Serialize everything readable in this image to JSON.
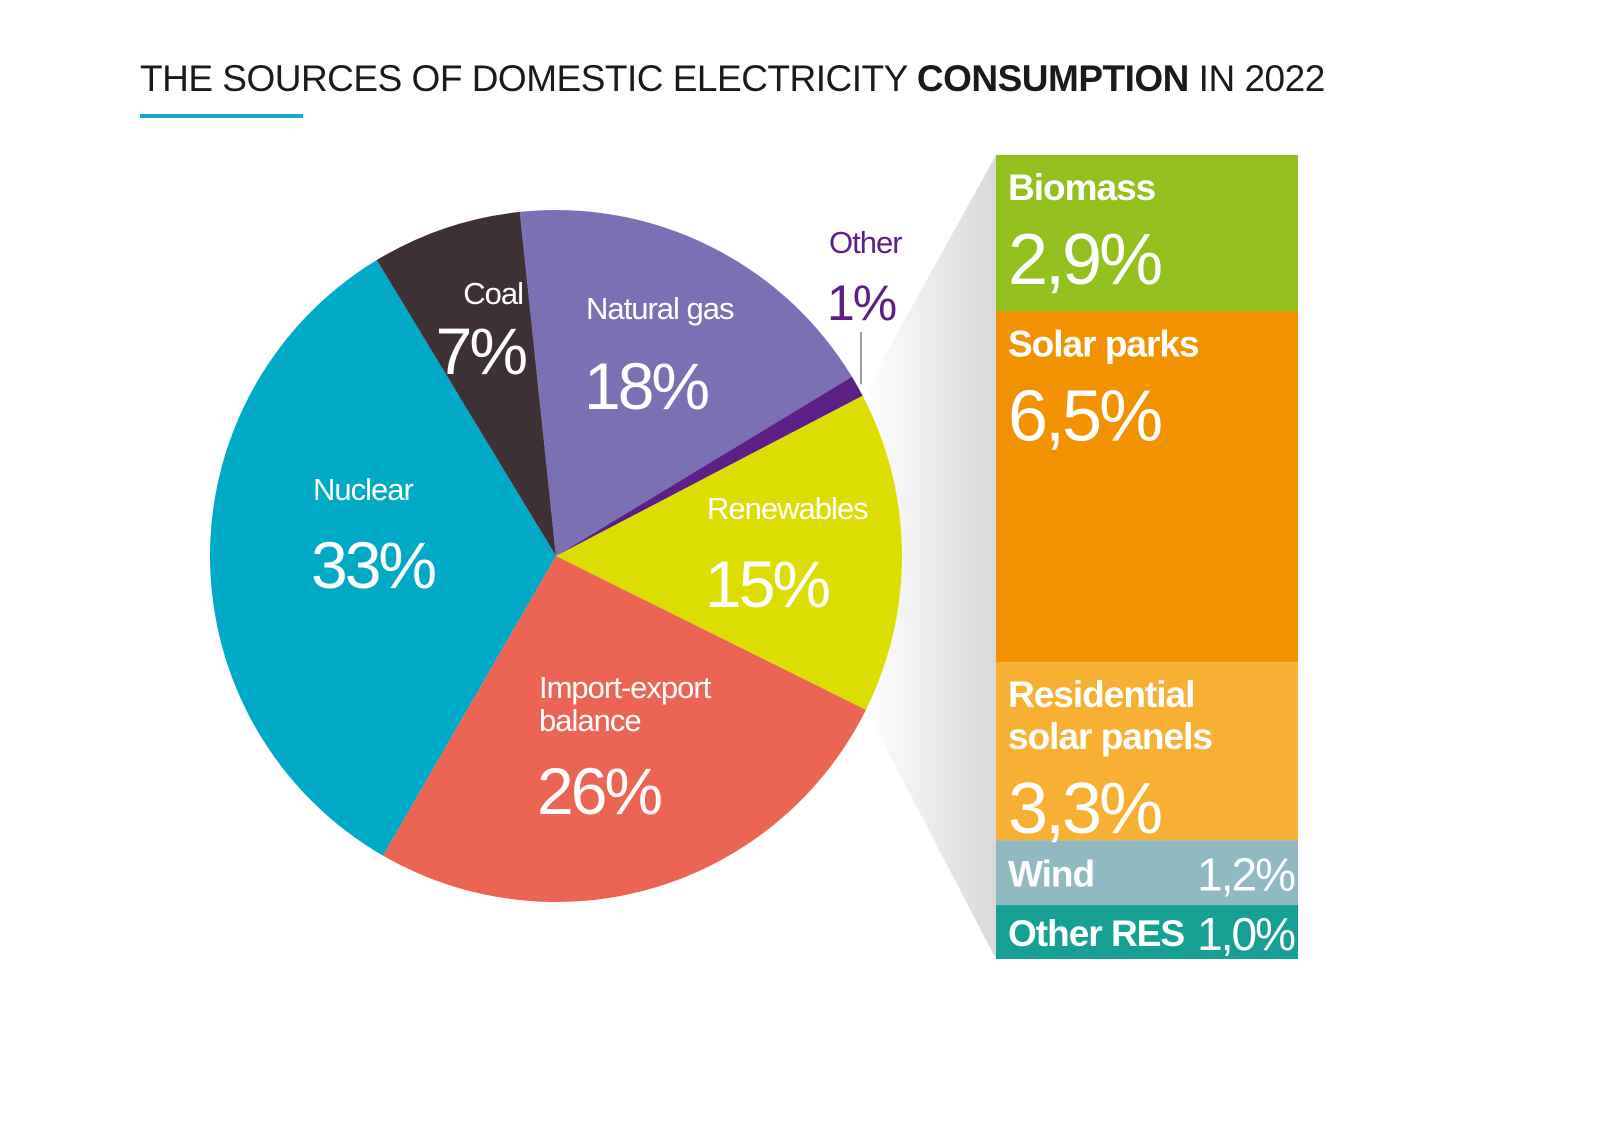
{
  "title": {
    "prefix": "THE SOURCES OF DOMESTIC ELECTRICITY ",
    "bold": "CONSUMPTION",
    "suffix": " IN 2022"
  },
  "colors": {
    "accent": "#1ba9d3",
    "nuclear": "#00a9c6",
    "coal": "#3d3135",
    "natural_gas": "#7a70b3",
    "other": "#5c1f85",
    "renewables": "#dcdd00",
    "import_export": "#ec6554",
    "biomass": "#93c01f",
    "solar_parks": "#f29200",
    "residential_solar": "#f7b033",
    "wind": "#91b9c2",
    "other_res": "#16a093"
  },
  "chart_data": [
    {
      "type": "pie",
      "slices": [
        {
          "key": "nuclear",
          "name": "Nuclear",
          "value": 33,
          "label": "33%",
          "color": "#00a9c6"
        },
        {
          "key": "coal",
          "name": "Coal",
          "value": 7,
          "label": "7%",
          "color": "#3d3135"
        },
        {
          "key": "natural_gas",
          "name": "Natural gas",
          "value": 18,
          "label": "18%",
          "color": "#7a70b3"
        },
        {
          "key": "other",
          "name": "Other",
          "value": 1,
          "label": "1%",
          "color": "#5c1f85"
        },
        {
          "key": "renewables",
          "name": "Renewables",
          "value": 15,
          "label": "15%",
          "color": "#dcdd00"
        },
        {
          "key": "import_export",
          "name": "Import-export balance",
          "name_lines": [
            "Import-export",
            "balance"
          ],
          "value": 26,
          "label": "26%",
          "color": "#ec6554"
        }
      ]
    },
    {
      "type": "bar",
      "stacked": true,
      "breakdown_of": "Renewables",
      "segments": [
        {
          "key": "biomass",
          "name": "Biomass",
          "value": 2.9,
          "label": "2,9%",
          "color": "#93c01f"
        },
        {
          "key": "solar_parks",
          "name": "Solar parks",
          "value": 6.5,
          "label": "6,5%",
          "color": "#f29200"
        },
        {
          "key": "residential_solar",
          "name": "Residential solar panels",
          "name_lines": [
            "Residential",
            "solar panels"
          ],
          "value": 3.3,
          "label": "3,3%",
          "color": "#f7b033"
        },
        {
          "key": "wind",
          "name": "Wind",
          "value": 1.2,
          "label": "1,2%",
          "color": "#91b9c2"
        },
        {
          "key": "other_res",
          "name": "Other RES",
          "value": 1.0,
          "label": "1,0%",
          "color": "#16a093"
        }
      ]
    }
  ]
}
